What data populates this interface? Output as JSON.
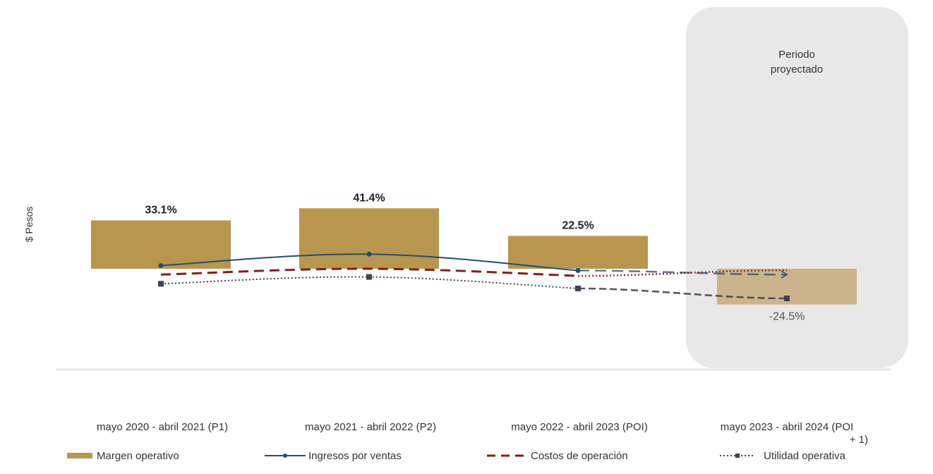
{
  "chart_data": {
    "type": "bar",
    "ylabel": "$ Pesos",
    "xlabel": "",
    "categories": [
      "mayo 2020 - abril 2021 (P1)",
      "mayo 2021 - abril 2022 (P2)",
      "mayo 2022 - abril 2023 (POI)",
      "mayo 2023 - abril 2024 (POI + 1)"
    ],
    "category_lines": [
      [
        "mayo 2020 - abril 2021 (P1)"
      ],
      [
        "mayo 2021 - abril 2022 (P2)"
      ],
      [
        "mayo 2022 - abril 2023 (POI)"
      ],
      [
        "mayo 2023 - abril 2024 (POI",
        "+ 1)"
      ]
    ],
    "bar_series": {
      "name": "Margen operativo",
      "values": [
        33.1,
        41.4,
        22.5,
        -24.5
      ],
      "labels": [
        "33.1%",
        "41.4%",
        "22.5%",
        "-24.5%"
      ],
      "color": "#b8964e",
      "projected_color": "#cbb48c"
    },
    "series": [
      {
        "name": "Ingresos por ventas",
        "values": [
          2.2,
          10.0,
          -1.2,
          -4.0
        ],
        "color": "#1f4e79",
        "style": "solid",
        "marker": "dot"
      },
      {
        "name": "Costos de operación",
        "values": [
          -4.0,
          0.0,
          -4.9,
          -1.0
        ],
        "color": "#8b1a1a",
        "style": "dashed",
        "marker": "none"
      },
      {
        "name": "Utilidad operativa",
        "values": [
          -10.3,
          -5.6,
          -13.5,
          -20.3
        ],
        "color": "#3d4352",
        "style": "dotted",
        "marker": "square"
      }
    ],
    "ylim": [
      -23,
      52
    ],
    "projected_period": {
      "label_line1": "Periodo",
      "label_line2": "proyectado",
      "category_index": 3,
      "color": "#e8e8e8"
    },
    "legend": {
      "position": "bottom"
    }
  }
}
